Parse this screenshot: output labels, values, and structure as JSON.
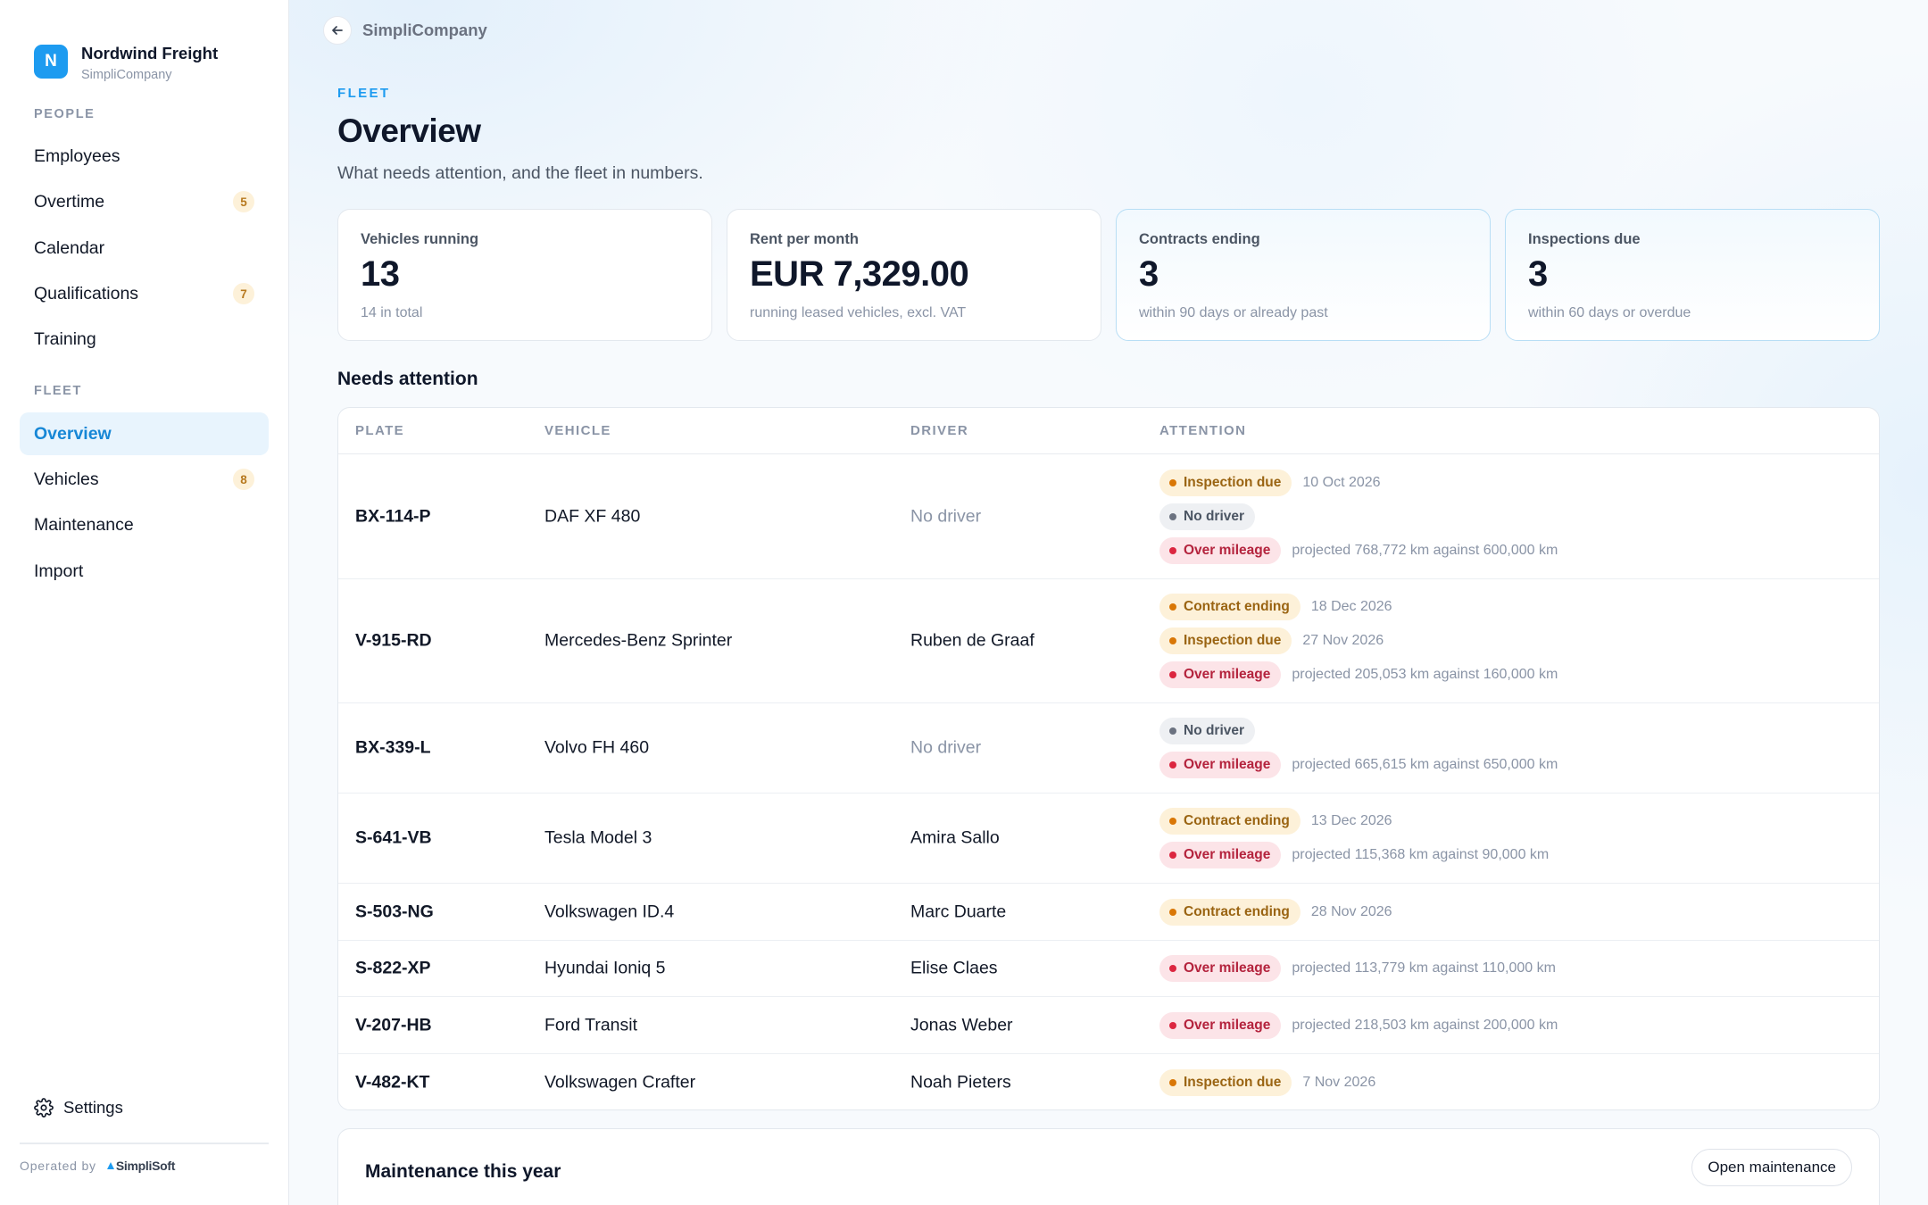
{
  "brand": {
    "initial": "N",
    "name": "Nordwind Freight",
    "sub": "SimpliCompany"
  },
  "nav": {
    "people_label": "PEOPLE",
    "people": [
      {
        "label": "Employees",
        "badge": ""
      },
      {
        "label": "Overtime",
        "badge": "5"
      },
      {
        "label": "Calendar",
        "badge": ""
      },
      {
        "label": "Qualifications",
        "badge": "7"
      },
      {
        "label": "Training",
        "badge": ""
      }
    ],
    "fleet_label": "FLEET",
    "fleet": [
      {
        "label": "Overview",
        "badge": "",
        "active": true
      },
      {
        "label": "Vehicles",
        "badge": "8"
      },
      {
        "label": "Maintenance",
        "badge": ""
      },
      {
        "label": "Import",
        "badge": ""
      }
    ],
    "settings": "Settings",
    "operated_by": "Operated by",
    "operator_logo": "SimpliSoft"
  },
  "header": {
    "crumb": "SimpliCompany",
    "eyebrow": "FLEET",
    "title": "Overview",
    "subtitle": "What needs attention, and the fleet in numbers."
  },
  "stats": [
    {
      "label": "Vehicles running",
      "value": "13",
      "note": "14 in total"
    },
    {
      "label": "Rent per month",
      "value": "EUR 7,329.00",
      "note": "running leased vehicles, excl. VAT"
    },
    {
      "label": "Contracts ending",
      "value": "3",
      "note": "within 90 days or already past"
    },
    {
      "label": "Inspections due",
      "value": "3",
      "note": "within 60 days or overdue"
    }
  ],
  "attention": {
    "title": "Needs attention",
    "columns": [
      "PLATE",
      "VEHICLE",
      "DRIVER",
      "ATTENTION"
    ],
    "rows": [
      {
        "plate": "BX-114-P",
        "vehicle": "DAF XF 480",
        "driver": "No driver",
        "items": [
          {
            "label": "Inspection due",
            "note": "10 Oct 2026"
          },
          {
            "label": "No driver",
            "note": ""
          },
          {
            "label": "Over mileage",
            "note": "projected 768,772 km against 600,000 km"
          }
        ]
      },
      {
        "plate": "V-915-RD",
        "vehicle": "Mercedes-Benz Sprinter",
        "driver": "Ruben de Graaf",
        "items": [
          {
            "label": "Contract ending",
            "note": "18 Dec 2026"
          },
          {
            "label": "Inspection due",
            "note": "27 Nov 2026"
          },
          {
            "label": "Over mileage",
            "note": "projected 205,053 km against 160,000 km"
          }
        ]
      },
      {
        "plate": "BX-339-L",
        "vehicle": "Volvo FH 460",
        "driver": "No driver",
        "items": [
          {
            "label": "No driver",
            "note": ""
          },
          {
            "label": "Over mileage",
            "note": "projected 665,615 km against 650,000 km"
          }
        ]
      },
      {
        "plate": "S-641-VB",
        "vehicle": "Tesla Model 3",
        "driver": "Amira Sallo",
        "items": [
          {
            "label": "Contract ending",
            "note": "13 Dec 2026"
          },
          {
            "label": "Over mileage",
            "note": "projected 115,368 km against 90,000 km"
          }
        ]
      },
      {
        "plate": "S-503-NG",
        "vehicle": "Volkswagen ID.4",
        "driver": "Marc Duarte",
        "items": [
          {
            "label": "Contract ending",
            "note": "28 Nov 2026"
          }
        ]
      },
      {
        "plate": "S-822-XP",
        "vehicle": "Hyundai Ioniq 5",
        "driver": "Elise Claes",
        "items": [
          {
            "label": "Over mileage",
            "note": "projected 113,779 km against 110,000 km"
          }
        ]
      },
      {
        "plate": "V-207-HB",
        "vehicle": "Ford Transit",
        "driver": "Jonas Weber",
        "items": [
          {
            "label": "Over mileage",
            "note": "projected 218,503 km against 200,000 km"
          }
        ]
      },
      {
        "plate": "V-482-KT",
        "vehicle": "Volkswagen Crafter",
        "driver": "Noah Pieters",
        "items": [
          {
            "label": "Inspection due",
            "note": "7 Nov 2026"
          }
        ]
      }
    ]
  },
  "maintenance": {
    "title": "Maintenance this year",
    "button": "Open maintenance"
  },
  "colors": {
    "accent": "#1d9bf0",
    "amber": "#d97706",
    "red": "#dc2640",
    "gray": "#6b7280"
  }
}
